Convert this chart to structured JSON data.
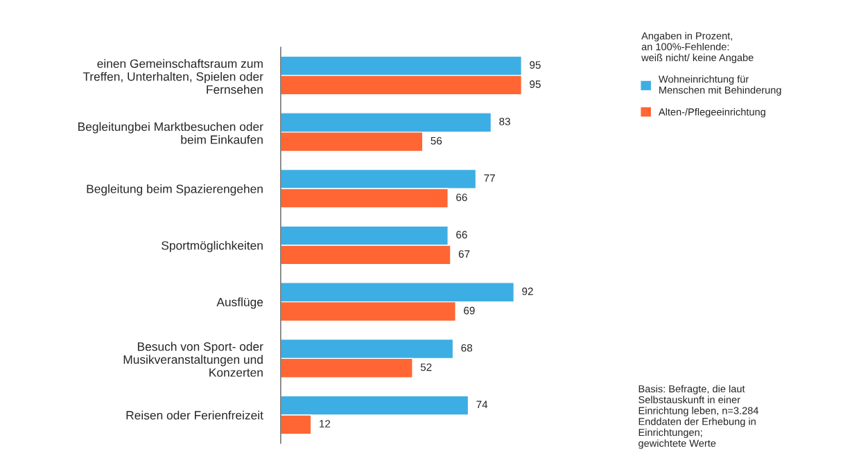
{
  "chart_data": {
    "type": "bar",
    "orientation": "horizontal",
    "categories": [
      "einen Gemeinschaftsraum zum\nTreffen, Unterhalten, Spielen oder\nFernsehen",
      "Begleitungbei Marktbesuchen oder\nbeim Einkaufen",
      "Begleitung beim Spazierengehen",
      "Sportmöglichkeiten",
      "Ausflüge",
      "Besuch von Sport- oder\nMusikveranstaltungen und\nKonzerten",
      "Reisen oder Ferienfreizeit"
    ],
    "series": [
      {
        "name": "Wohneinrichtung für\nMenschen mit Behinderung",
        "color": "#3daee3",
        "values": [
          95,
          83,
          77,
          66,
          92,
          68,
          74
        ]
      },
      {
        "name": "Alten-/Pflegeeinrichtung",
        "color": "#ff6633",
        "values": [
          95,
          56,
          66,
          67,
          69,
          52,
          12
        ]
      }
    ],
    "data_labels": true,
    "legend": "top right",
    "legend_title": "Angaben in Prozent,\nan 100%-Fehlende:\nweiß nicht/ keine Angabe",
    "grid": false,
    "annotations": [
      "Basis: Befragte, die laut\nSelbstauskunft in einer\nEinrichtung leben, n=3.284\nEnddaten der Erhebung in\nEinrichtungen;\ngewichtete Werte"
    ]
  }
}
